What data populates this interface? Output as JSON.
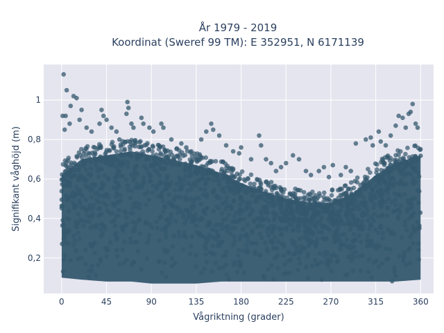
{
  "chart_data": {
    "type": "scatter",
    "title_lines": [
      "År 1979 - 2019",
      "Koordinat (Sweref 99 TM): E 352951, N 6171139"
    ],
    "xlabel": "Vågriktning (grader)",
    "ylabel": "Signifikant våghöjd (m)",
    "xlim": [
      -18,
      373
    ],
    "ylim": [
      0.02,
      1.18
    ],
    "x_ticks": [
      0,
      45,
      90,
      135,
      180,
      225,
      270,
      315,
      360
    ],
    "x_tick_labels": [
      "0",
      "45",
      "90",
      "135",
      "180",
      "225",
      "270",
      "315",
      "360"
    ],
    "y_ticks": [
      0.2,
      0.4,
      0.6,
      0.8,
      1.0
    ],
    "y_tick_labels": [
      "0,2",
      "0,4",
      "0,6",
      "0,8",
      "1"
    ],
    "grid": true,
    "background_color": "#e5e5ef",
    "marker_color": "#34586e",
    "marker_opacity": 0.75,
    "band_envelope": {
      "x": [
        0,
        20,
        45,
        70,
        90,
        110,
        135,
        160,
        180,
        200,
        225,
        250,
        270,
        290,
        315,
        335,
        360
      ],
      "lower": [
        0.1,
        0.09,
        0.08,
        0.08,
        0.07,
        0.07,
        0.07,
        0.08,
        0.08,
        0.08,
        0.08,
        0.08,
        0.08,
        0.08,
        0.08,
        0.08,
        0.09
      ],
      "upper": [
        0.62,
        0.7,
        0.72,
        0.74,
        0.72,
        0.7,
        0.67,
        0.63,
        0.58,
        0.54,
        0.5,
        0.48,
        0.48,
        0.52,
        0.62,
        0.68,
        0.72
      ]
    },
    "outlier_points": [
      {
        "x": 2,
        "y": 1.13
      },
      {
        "x": 5,
        "y": 1.05
      },
      {
        "x": 12,
        "y": 1.02
      },
      {
        "x": 15,
        "y": 1.01
      },
      {
        "x": 9,
        "y": 0.97
      },
      {
        "x": 1,
        "y": 0.92
      },
      {
        "x": 4,
        "y": 0.92
      },
      {
        "x": 20,
        "y": 0.95
      },
      {
        "x": 18,
        "y": 0.9
      },
      {
        "x": 8,
        "y": 0.88
      },
      {
        "x": 3,
        "y": 0.85
      },
      {
        "x": 25,
        "y": 0.86
      },
      {
        "x": 30,
        "y": 0.84
      },
      {
        "x": 38,
        "y": 0.88
      },
      {
        "x": 40,
        "y": 0.95
      },
      {
        "x": 42,
        "y": 0.92
      },
      {
        "x": 45,
        "y": 0.9
      },
      {
        "x": 50,
        "y": 0.86
      },
      {
        "x": 55,
        "y": 0.84
      },
      {
        "x": 58,
        "y": 0.8
      },
      {
        "x": 66,
        "y": 0.99
      },
      {
        "x": 67,
        "y": 0.96
      },
      {
        "x": 65,
        "y": 0.93
      },
      {
        "x": 70,
        "y": 0.88
      },
      {
        "x": 72,
        "y": 0.86
      },
      {
        "x": 80,
        "y": 0.91
      },
      {
        "x": 82,
        "y": 0.88
      },
      {
        "x": 88,
        "y": 0.86
      },
      {
        "x": 92,
        "y": 0.84
      },
      {
        "x": 100,
        "y": 0.88
      },
      {
        "x": 102,
        "y": 0.86
      },
      {
        "x": 110,
        "y": 0.8
      },
      {
        "x": 120,
        "y": 0.78
      },
      {
        "x": 125,
        "y": 0.76
      },
      {
        "x": 130,
        "y": 0.74
      },
      {
        "x": 140,
        "y": 0.8
      },
      {
        "x": 145,
        "y": 0.84
      },
      {
        "x": 150,
        "y": 0.88
      },
      {
        "x": 152,
        "y": 0.85
      },
      {
        "x": 158,
        "y": 0.82
      },
      {
        "x": 165,
        "y": 0.77
      },
      {
        "x": 172,
        "y": 0.74
      },
      {
        "x": 178,
        "y": 0.73
      },
      {
        "x": 180,
        "y": 0.76
      },
      {
        "x": 190,
        "y": 0.7
      },
      {
        "x": 198,
        "y": 0.82
      },
      {
        "x": 200,
        "y": 0.77
      },
      {
        "x": 205,
        "y": 0.7
      },
      {
        "x": 210,
        "y": 0.68
      },
      {
        "x": 215,
        "y": 0.64
      },
      {
        "x": 220,
        "y": 0.66
      },
      {
        "x": 225,
        "y": 0.68
      },
      {
        "x": 232,
        "y": 0.72
      },
      {
        "x": 238,
        "y": 0.7
      },
      {
        "x": 245,
        "y": 0.64
      },
      {
        "x": 250,
        "y": 0.62
      },
      {
        "x": 258,
        "y": 0.64
      },
      {
        "x": 263,
        "y": 0.66
      },
      {
        "x": 268,
        "y": 0.61
      },
      {
        "x": 272,
        "y": 0.67
      },
      {
        "x": 280,
        "y": 0.62
      },
      {
        "x": 285,
        "y": 0.66
      },
      {
        "x": 290,
        "y": 0.64
      },
      {
        "x": 295,
        "y": 0.78
      },
      {
        "x": 305,
        "y": 0.8
      },
      {
        "x": 310,
        "y": 0.81
      },
      {
        "x": 312,
        "y": 0.77
      },
      {
        "x": 318,
        "y": 0.84
      },
      {
        "x": 320,
        "y": 0.79
      },
      {
        "x": 325,
        "y": 0.77
      },
      {
        "x": 330,
        "y": 0.82
      },
      {
        "x": 335,
        "y": 0.87
      },
      {
        "x": 338,
        "y": 0.92
      },
      {
        "x": 342,
        "y": 0.91
      },
      {
        "x": 345,
        "y": 0.86
      },
      {
        "x": 348,
        "y": 0.93
      },
      {
        "x": 350,
        "y": 0.94
      },
      {
        "x": 352,
        "y": 0.98
      },
      {
        "x": 355,
        "y": 0.88
      },
      {
        "x": 357,
        "y": 0.86
      }
    ]
  }
}
